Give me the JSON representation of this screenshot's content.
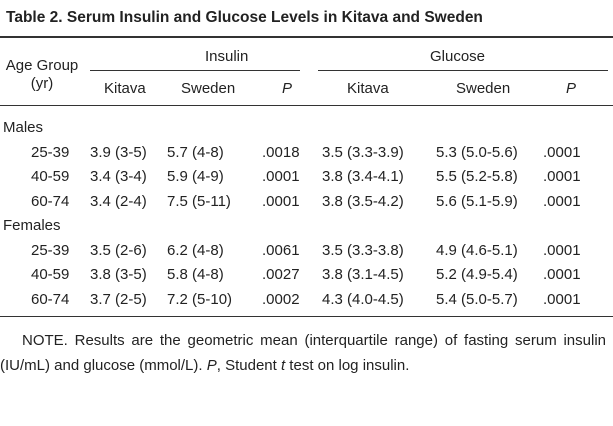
{
  "title": "Table 2.  Serum Insulin and Glucose Levels in Kitava and Sweden",
  "header": {
    "age_group": "Age Group (yr)",
    "insulin": "Insulin",
    "glucose": "Glucose",
    "subcolumns": [
      "Kitava",
      "Sweden",
      "P",
      "Kitava",
      "Sweden",
      "P"
    ]
  },
  "groups": [
    {
      "label": "Males",
      "rows": [
        [
          "25-39",
          "3.9 (3-5)",
          "5.7 (4-8)",
          ".0018",
          "3.5 (3.3-3.9)",
          "5.3 (5.0-5.6)",
          ".0001"
        ],
        [
          "40-59",
          "3.4 (3-4)",
          "5.9 (4-9)",
          ".0001",
          "3.8 (3.4-4.1)",
          "5.5 (5.2-5.8)",
          ".0001"
        ],
        [
          "60-74",
          "3.4 (2-4)",
          "7.5 (5-11)",
          ".0001",
          "3.8 (3.5-4.2)",
          "5.6 (5.1-5.9)",
          ".0001"
        ]
      ]
    },
    {
      "label": "Females",
      "rows": [
        [
          "25-39",
          "3.5 (2-6)",
          "6.2 (4-8)",
          ".0061",
          "3.5 (3.3-3.8)",
          "4.9 (4.6-5.1)",
          ".0001"
        ],
        [
          "40-59",
          "3.8 (3-5)",
          "5.8 (4-8)",
          ".0027",
          "3.8 (3.1-4.5)",
          "5.2 (4.9-5.4)",
          ".0001"
        ],
        [
          "60-74",
          "3.7 (2-5)",
          "7.2 (5-10)",
          ".0002",
          "4.3 (4.0-4.5)",
          "5.4 (5.0-5.7)",
          ".0001"
        ]
      ]
    }
  ],
  "note": {
    "text1": "NOTE. Results are the geometric mean (interquartile range) of fasting serum insulin (IU/mL) and glucose (mmol/L). ",
    "p": "P",
    "text2": ", Student ",
    "t": "t",
    "text3": " test on log insulin."
  }
}
